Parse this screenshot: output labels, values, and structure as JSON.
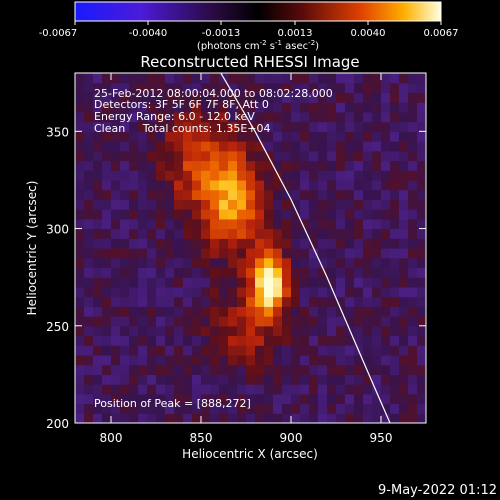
{
  "colorbar": {
    "tick_labels": [
      "-0.0067",
      "-0.0040",
      "-0.0013",
      "0.0013",
      "0.0040",
      "0.0067"
    ],
    "units_prefix": "(photons cm",
    "units_exp1": "-2",
    "units_mid": " s",
    "units_exp2": "-1",
    "units_mid2": " asec",
    "units_exp3": "-2",
    "units_suffix": ")",
    "range": [
      -0.0067,
      0.0067
    ],
    "colormap": "red-temperature (blue/purple to white)"
  },
  "chart_data": {
    "type": "heatmap",
    "title": "Reconstructed RHESSI Image",
    "xlabel": "Heliocentric X (arcsec)",
    "ylabel": "Heliocentric Y (arcsec)",
    "xlim": [
      780,
      975
    ],
    "ylim": [
      200,
      380
    ],
    "x_ticks": [
      800,
      850,
      900,
      950
    ],
    "y_ticks": [
      200,
      250,
      300,
      350
    ],
    "x_tick_labels": [
      "800",
      "850",
      "900",
      "950"
    ],
    "y_tick_labels": [
      "200",
      "250",
      "300",
      "350"
    ],
    "annotations": [
      "25-Feb-2012 08:00:04.000 to 08:02:28.000",
      "Detectors: 3F 5F 6F 7F 8F, Att 0",
      "Energy Range: 6.0 - 12.0 keV",
      "Clean     Total counts: 1.35E+04"
    ],
    "peak_label": "Position of Peak = [888,272]",
    "peak": [
      888,
      272
    ],
    "sources": [
      {
        "x": 888,
        "y": 272,
        "sx": 7,
        "sy": 11,
        "amp": 1.0
      },
      {
        "x": 868,
        "y": 312,
        "sx": 12,
        "sy": 16,
        "amp": 0.62
      },
      {
        "x": 850,
        "y": 335,
        "sx": 16,
        "sy": 18,
        "amp": 0.38
      },
      {
        "x": 875,
        "y": 250,
        "sx": 14,
        "sy": 14,
        "amp": 0.28
      }
    ],
    "limb_curve": [
      [
        861,
        380
      ],
      [
        880,
        350
      ],
      [
        900,
        315
      ],
      [
        920,
        275
      ],
      [
        940,
        232
      ],
      [
        955,
        200
      ]
    ],
    "grid": false
  },
  "footer": {
    "timestamp": "9-May-2022 01:12"
  }
}
